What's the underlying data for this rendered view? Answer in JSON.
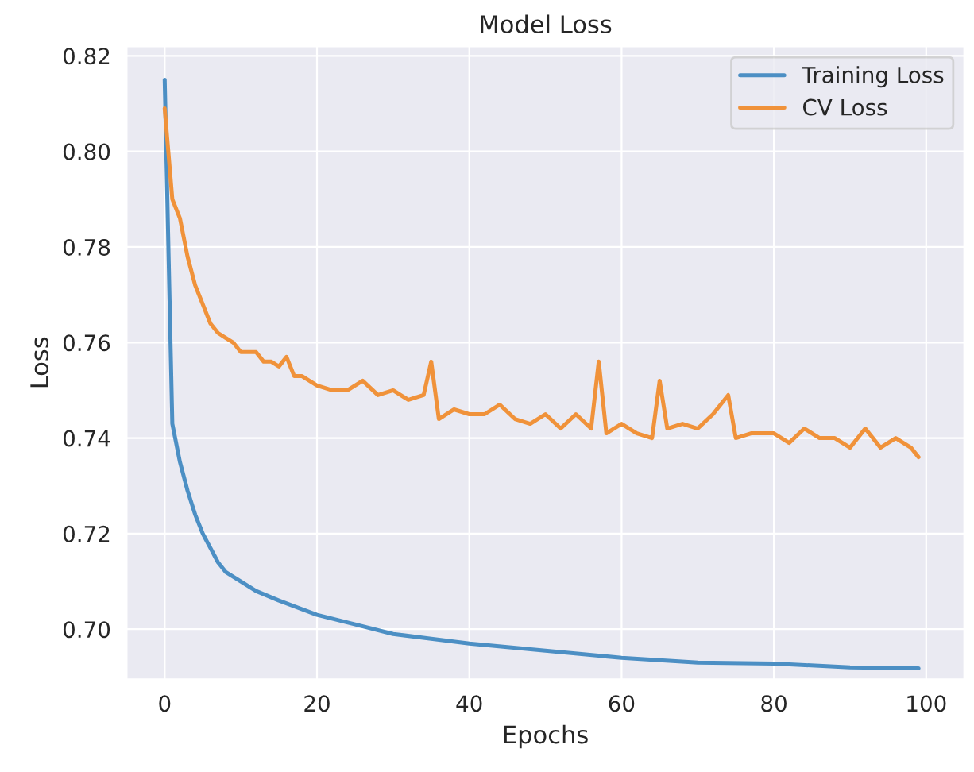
{
  "chart_data": {
    "type": "line",
    "title": "Model Loss",
    "xlabel": "Epochs",
    "ylabel": "Loss",
    "xlim": [
      -5,
      105
    ],
    "ylim": [
      0.6895,
      0.822
    ],
    "xticks": [
      0,
      20,
      40,
      60,
      80,
      100
    ],
    "yticks": [
      {
        "value": 0.7,
        "label": "0.70"
      },
      0.72,
      0.74,
      0.76,
      0.78,
      {
        "value": 0.8,
        "label": "0.80"
      },
      0.82
    ],
    "grid": true,
    "legend": "top right",
    "marker": "none",
    "line_style": "solid",
    "series": [
      {
        "name": "Training Loss",
        "color": "#4c8fc4",
        "x": [
          0,
          1,
          2,
          3,
          4,
          5,
          6,
          7,
          8,
          10,
          12,
          15,
          20,
          25,
          30,
          35,
          40,
          50,
          60,
          70,
          80,
          90,
          99
        ],
        "values": [
          0.815,
          0.743,
          0.735,
          0.729,
          0.724,
          0.72,
          0.717,
          0.714,
          0.712,
          0.71,
          0.708,
          0.706,
          0.703,
          0.701,
          0.699,
          0.698,
          0.697,
          0.6955,
          0.694,
          0.693,
          0.6928,
          0.692,
          0.6918
        ]
      },
      {
        "name": "CV Loss",
        "color": "#f0923a",
        "x": [
          0,
          1,
          2,
          3,
          4,
          5,
          6,
          7,
          8,
          9,
          10,
          11,
          12,
          13,
          14,
          15,
          16,
          17,
          18,
          19,
          20,
          22,
          24,
          26,
          28,
          30,
          32,
          34,
          35,
          36,
          38,
          40,
          42,
          44,
          46,
          48,
          50,
          52,
          54,
          56,
          57,
          58,
          60,
          62,
          64,
          65,
          66,
          68,
          70,
          72,
          74,
          75,
          77,
          80,
          82,
          84,
          86,
          88,
          90,
          92,
          94,
          96,
          98,
          99
        ],
        "values": [
          0.809,
          0.79,
          0.786,
          0.778,
          0.772,
          0.768,
          0.764,
          0.762,
          0.761,
          0.76,
          0.758,
          0.758,
          0.758,
          0.756,
          0.756,
          0.755,
          0.757,
          0.753,
          0.753,
          0.752,
          0.751,
          0.75,
          0.75,
          0.752,
          0.749,
          0.75,
          0.748,
          0.749,
          0.756,
          0.744,
          0.746,
          0.745,
          0.745,
          0.747,
          0.744,
          0.743,
          0.745,
          0.742,
          0.745,
          0.742,
          0.756,
          0.741,
          0.743,
          0.741,
          0.74,
          0.752,
          0.742,
          0.743,
          0.742,
          0.745,
          0.749,
          0.74,
          0.741,
          0.741,
          0.739,
          0.742,
          0.74,
          0.74,
          0.738,
          0.742,
          0.738,
          0.74,
          0.738,
          0.736
        ]
      }
    ]
  }
}
